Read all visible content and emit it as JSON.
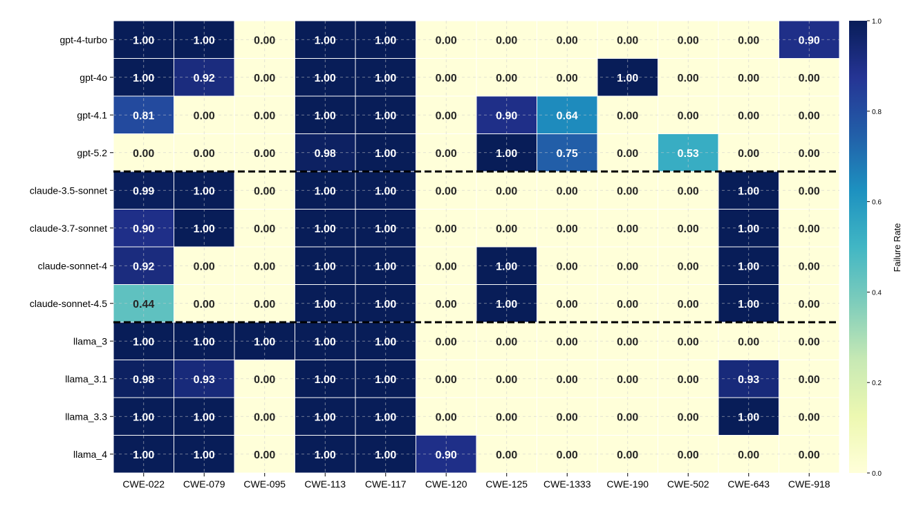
{
  "chart_data": {
    "type": "heatmap",
    "title": "",
    "xlabel": "",
    "ylabel": "",
    "colorbar_label": "Failure Rate",
    "colorscale": "YlGnBu",
    "vmin": 0.0,
    "vmax": 1.0,
    "colorbar_ticks": [
      "0.0",
      "0.2",
      "0.4",
      "0.6",
      "0.8",
      "1.0"
    ],
    "grid": true,
    "columns": [
      "CWE-022",
      "CWE-079",
      "CWE-095",
      "CWE-113",
      "CWE-117",
      "CWE-120",
      "CWE-125",
      "CWE-1333",
      "CWE-190",
      "CWE-502",
      "CWE-643",
      "CWE-918"
    ],
    "rows": [
      "gpt-4-turbo",
      "gpt-4o",
      "gpt-4.1",
      "gpt-5.2",
      "claude-3.5-sonnet",
      "claude-3.7-sonnet",
      "claude-sonnet-4",
      "claude-sonnet-4.5",
      "llama_3",
      "llama_3.1",
      "llama_3.3",
      "llama_4"
    ],
    "group_separators_after_rows": [
      3,
      7
    ],
    "values": [
      [
        1.0,
        1.0,
        0.0,
        1.0,
        1.0,
        0.0,
        0.0,
        0.0,
        0.0,
        0.0,
        0.0,
        0.9
      ],
      [
        1.0,
        0.92,
        0.0,
        1.0,
        1.0,
        0.0,
        0.0,
        0.0,
        1.0,
        0.0,
        0.0,
        0.0
      ],
      [
        0.81,
        0.0,
        0.0,
        1.0,
        1.0,
        0.0,
        0.9,
        0.64,
        0.0,
        0.0,
        0.0,
        0.0
      ],
      [
        0.0,
        0.0,
        0.0,
        0.98,
        1.0,
        0.0,
        1.0,
        0.75,
        0.0,
        0.53,
        0.0,
        0.0
      ],
      [
        0.99,
        1.0,
        0.0,
        1.0,
        1.0,
        0.0,
        0.0,
        0.0,
        0.0,
        0.0,
        1.0,
        0.0
      ],
      [
        0.9,
        1.0,
        0.0,
        1.0,
        1.0,
        0.0,
        0.0,
        0.0,
        0.0,
        0.0,
        1.0,
        0.0
      ],
      [
        0.92,
        0.0,
        0.0,
        1.0,
        1.0,
        0.0,
        1.0,
        0.0,
        0.0,
        0.0,
        1.0,
        0.0
      ],
      [
        0.44,
        0.0,
        0.0,
        1.0,
        1.0,
        0.0,
        1.0,
        0.0,
        0.0,
        0.0,
        1.0,
        0.0
      ],
      [
        1.0,
        1.0,
        1.0,
        1.0,
        1.0,
        0.0,
        0.0,
        0.0,
        0.0,
        0.0,
        0.0,
        0.0
      ],
      [
        0.98,
        0.93,
        0.0,
        1.0,
        1.0,
        0.0,
        0.0,
        0.0,
        0.0,
        0.0,
        0.93,
        0.0
      ],
      [
        1.0,
        1.0,
        0.0,
        1.0,
        1.0,
        0.0,
        0.0,
        0.0,
        0.0,
        0.0,
        1.0,
        0.0
      ],
      [
        1.0,
        1.0,
        0.0,
        1.0,
        1.0,
        0.9,
        0.0,
        0.0,
        0.0,
        0.0,
        0.0,
        0.0
      ]
    ],
    "cell_labels": [
      [
        "1.00",
        "1.00",
        "0.00",
        "1.00",
        "1.00",
        "0.00",
        "0.00",
        "0.00",
        "0.00",
        "0.00",
        "0.00",
        "0.90"
      ],
      [
        "1.00",
        "0.92",
        "0.00",
        "1.00",
        "1.00",
        "0.00",
        "0.00",
        "0.00",
        "1.00",
        "0.00",
        "0.00",
        "0.00"
      ],
      [
        "0.81",
        "0.00",
        "0.00",
        "1.00",
        "1.00",
        "0.00",
        "0.90",
        "0.64",
        "0.00",
        "0.00",
        "0.00",
        "0.00"
      ],
      [
        "0.00",
        "0.00",
        "0.00",
        "0.98",
        "1.00",
        "0.00",
        "1.00",
        "0.75",
        "0.00",
        "0.53",
        "0.00",
        "0.00"
      ],
      [
        "0.99",
        "1.00",
        "0.00",
        "1.00",
        "1.00",
        "0.00",
        "0.00",
        "0.00",
        "0.00",
        "0.00",
        "1.00",
        "0.00"
      ],
      [
        "0.90",
        "1.00",
        "0.00",
        "1.00",
        "1.00",
        "0.00",
        "0.00",
        "0.00",
        "0.00",
        "0.00",
        "1.00",
        "0.00"
      ],
      [
        "0.92",
        "0.00",
        "0.00",
        "1.00",
        "1.00",
        "0.00",
        "1.00",
        "0.00",
        "0.00",
        "0.00",
        "1.00",
        "0.00"
      ],
      [
        "0.44",
        "0.00",
        "0.00",
        "1.00",
        "1.00",
        "0.00",
        "1.00",
        "0.00",
        "0.00",
        "0.00",
        "1.00",
        "0.00"
      ],
      [
        "1.00",
        "1.00",
        "1.00",
        "1.00",
        "1.00",
        "0.00",
        "0.00",
        "0.00",
        "0.00",
        "0.00",
        "0.00",
        "0.00"
      ],
      [
        "0.98",
        "0.93",
        "0.00",
        "1.00",
        "1.00",
        "0.00",
        "0.00",
        "0.00",
        "0.00",
        "0.00",
        "0.93",
        "0.00"
      ],
      [
        "1.00",
        "1.00",
        "0.00",
        "1.00",
        "1.00",
        "0.00",
        "0.00",
        "0.00",
        "0.00",
        "0.00",
        "1.00",
        "0.00"
      ],
      [
        "1.00",
        "1.00",
        "0.00",
        "1.00",
        "1.00",
        "0.90",
        "0.00",
        "0.00",
        "0.00",
        "0.00",
        "0.00",
        "0.00"
      ]
    ],
    "colors": {
      "low": "#ffffd9",
      "high": "#081d58",
      "separator": "#000000",
      "grid": "#cccccc",
      "cell_border": "#ffffff"
    }
  }
}
